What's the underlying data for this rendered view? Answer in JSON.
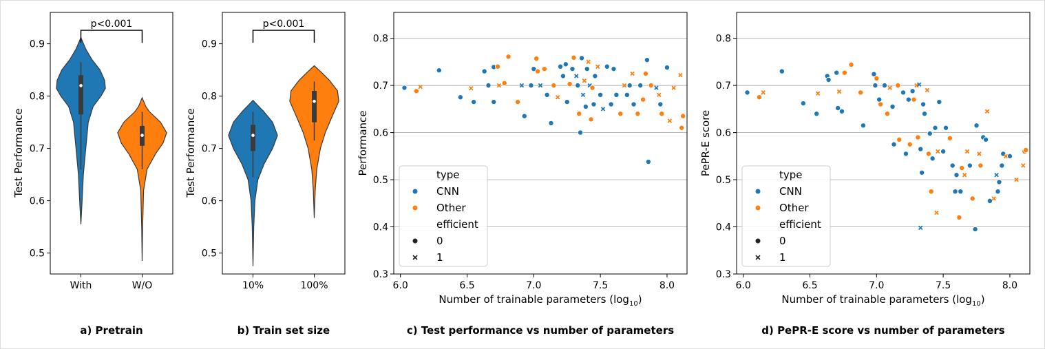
{
  "colors": {
    "cnn": "#1f77b4",
    "other": "#ff7f0e",
    "grid": "#b0b0b0",
    "body": "#3a3a3a"
  },
  "chart_data": [
    {
      "id": "a",
      "type": "violin",
      "caption": "a) Pretrain",
      "ylabel": "Test Performance",
      "ylim": [
        0.46,
        0.96
      ],
      "yticks": [
        "0.5",
        "0.6",
        "0.7",
        "0.8",
        "0.9"
      ],
      "categories": [
        "With",
        "W/O"
      ],
      "annotation": "p<0.001",
      "violins": [
        {
          "name": "With",
          "color": "#1f77b4",
          "min": 0.555,
          "max": 0.912,
          "q1": 0.765,
          "median": 0.82,
          "q3": 0.84,
          "whisker_low": 0.66,
          "whisker_high": 0.865,
          "profile": [
            [
              0.555,
              0.0
            ],
            [
              0.6,
              0.05
            ],
            [
              0.65,
              0.1
            ],
            [
              0.7,
              0.2
            ],
            [
              0.75,
              0.3
            ],
            [
              0.78,
              0.5
            ],
            [
              0.8,
              0.82
            ],
            [
              0.815,
              1.0
            ],
            [
              0.83,
              0.97
            ],
            [
              0.85,
              0.78
            ],
            [
              0.87,
              0.45
            ],
            [
              0.89,
              0.2
            ],
            [
              0.912,
              0.0
            ]
          ]
        },
        {
          "name": "W/O",
          "color": "#ff7f0e",
          "min": 0.485,
          "max": 0.797,
          "q1": 0.705,
          "median": 0.725,
          "q3": 0.743,
          "whisker_low": 0.66,
          "whisker_high": 0.77,
          "profile": [
            [
              0.485,
              0.0
            ],
            [
              0.55,
              0.02
            ],
            [
              0.62,
              0.06
            ],
            [
              0.66,
              0.2
            ],
            [
              0.69,
              0.55
            ],
            [
              0.71,
              0.85
            ],
            [
              0.73,
              1.0
            ],
            [
              0.75,
              0.75
            ],
            [
              0.77,
              0.3
            ],
            [
              0.78,
              0.15
            ],
            [
              0.797,
              0.0
            ]
          ]
        }
      ]
    },
    {
      "id": "b",
      "type": "violin",
      "caption": "b) Train set size",
      "ylabel": "Test Performance",
      "ylim": [
        0.46,
        0.96
      ],
      "yticks": [
        "0.5",
        "0.6",
        "0.7",
        "0.8",
        "0.9"
      ],
      "categories": [
        "10%",
        "100%"
      ],
      "annotation": "p<0.001",
      "violins": [
        {
          "name": "10%",
          "color": "#1f77b4",
          "min": 0.475,
          "max": 0.792,
          "q1": 0.695,
          "median": 0.725,
          "q3": 0.745,
          "whisker_low": 0.645,
          "whisker_high": 0.77,
          "profile": [
            [
              0.475,
              0.0
            ],
            [
              0.55,
              0.03
            ],
            [
              0.6,
              0.08
            ],
            [
              0.64,
              0.2
            ],
            [
              0.67,
              0.45
            ],
            [
              0.7,
              0.8
            ],
            [
              0.725,
              1.0
            ],
            [
              0.75,
              0.8
            ],
            [
              0.77,
              0.45
            ],
            [
              0.792,
              0.0
            ]
          ]
        },
        {
          "name": "100%",
          "color": "#ff7f0e",
          "min": 0.567,
          "max": 0.858,
          "q1": 0.75,
          "median": 0.79,
          "q3": 0.81,
          "whisker_low": 0.715,
          "whisker_high": 0.828,
          "profile": [
            [
              0.567,
              0.0
            ],
            [
              0.62,
              0.04
            ],
            [
              0.66,
              0.1
            ],
            [
              0.7,
              0.25
            ],
            [
              0.73,
              0.45
            ],
            [
              0.76,
              0.72
            ],
            [
              0.79,
              1.0
            ],
            [
              0.81,
              0.95
            ],
            [
              0.83,
              0.62
            ],
            [
              0.845,
              0.3
            ],
            [
              0.858,
              0.0
            ]
          ]
        }
      ]
    },
    {
      "id": "c",
      "type": "scatter",
      "caption": "c) Test performance vs number of parameters",
      "xlabel_main": "Number of trainable parameters (log",
      "xlabel_sub": "10",
      "xlabel_tail": ")",
      "ylabel": "Performance",
      "xlim": [
        5.95,
        8.15
      ],
      "ylim": [
        0.3,
        0.855
      ],
      "xticks": [
        "6.0",
        "6.5",
        "7.0",
        "7.5",
        "8.0"
      ],
      "yticks": [
        "0.3",
        "0.4",
        "0.5",
        "0.6",
        "0.7",
        "0.8"
      ],
      "legend": {
        "title_type": "type",
        "cnn": "CNN",
        "other": "Other",
        "title_eff": "efficient",
        "e0": "0",
        "e1": "1"
      },
      "points": [
        [
          6.03,
          0.695,
          "c",
          0
        ],
        [
          6.12,
          0.688,
          "o",
          0
        ],
        [
          6.15,
          0.697,
          "o",
          1
        ],
        [
          6.29,
          0.732,
          "c",
          0
        ],
        [
          6.45,
          0.675,
          "c",
          0
        ],
        [
          6.53,
          0.694,
          "o",
          1
        ],
        [
          6.55,
          0.665,
          "c",
          0
        ],
        [
          6.63,
          0.73,
          "c",
          0
        ],
        [
          6.66,
          0.7,
          "c",
          0
        ],
        [
          6.7,
          0.739,
          "c",
          0
        ],
        [
          6.7,
          0.665,
          "c",
          0
        ],
        [
          6.73,
          0.74,
          "o",
          0
        ],
        [
          6.74,
          0.7,
          "o",
          1
        ],
        [
          6.78,
          0.705,
          "o",
          0
        ],
        [
          6.81,
          0.761,
          "o",
          0
        ],
        [
          6.88,
          0.665,
          "o",
          0
        ],
        [
          6.91,
          0.7,
          "c",
          1
        ],
        [
          6.93,
          0.635,
          "c",
          0
        ],
        [
          6.98,
          0.7,
          "c",
          0
        ],
        [
          7.0,
          0.735,
          "c",
          0
        ],
        [
          7.02,
          0.757,
          "o",
          0
        ],
        [
          7.03,
          0.73,
          "o",
          0
        ],
        [
          7.05,
          0.7,
          "c",
          1
        ],
        [
          7.08,
          0.735,
          "o",
          0
        ],
        [
          7.1,
          0.68,
          "c",
          0
        ],
        [
          7.13,
          0.62,
          "c",
          0
        ],
        [
          7.15,
          0.7,
          "o",
          0
        ],
        [
          7.18,
          0.675,
          "o",
          1
        ],
        [
          7.2,
          0.74,
          "c",
          0
        ],
        [
          7.22,
          0.72,
          "c",
          0
        ],
        [
          7.24,
          0.745,
          "c",
          0
        ],
        [
          7.25,
          0.665,
          "c",
          0
        ],
        [
          7.27,
          0.703,
          "o",
          0
        ],
        [
          7.29,
          0.735,
          "c",
          0
        ],
        [
          7.3,
          0.759,
          "o",
          0
        ],
        [
          7.32,
          0.72,
          "c",
          1
        ],
        [
          7.33,
          0.7,
          "c",
          0
        ],
        [
          7.34,
          0.64,
          "o",
          0
        ],
        [
          7.35,
          0.6,
          "c",
          0
        ],
        [
          7.36,
          0.758,
          "c",
          0
        ],
        [
          7.37,
          0.68,
          "c",
          1
        ],
        [
          7.38,
          0.71,
          "o",
          1
        ],
        [
          7.39,
          0.655,
          "c",
          0
        ],
        [
          7.4,
          0.735,
          "c",
          0
        ],
        [
          7.41,
          0.75,
          "o",
          1
        ],
        [
          7.42,
          0.7,
          "c",
          1
        ],
        [
          7.43,
          0.628,
          "o",
          0
        ],
        [
          7.44,
          0.695,
          "o",
          0
        ],
        [
          7.45,
          0.66,
          "c",
          0
        ],
        [
          7.46,
          0.72,
          "c",
          0
        ],
        [
          7.48,
          0.74,
          "o",
          1
        ],
        [
          7.5,
          0.68,
          "c",
          0
        ],
        [
          7.52,
          0.65,
          "c",
          1
        ],
        [
          7.55,
          0.74,
          "c",
          0
        ],
        [
          7.58,
          0.66,
          "c",
          0
        ],
        [
          7.6,
          0.735,
          "c",
          0
        ],
        [
          7.62,
          0.68,
          "c",
          0
        ],
        [
          7.65,
          0.64,
          "o",
          0
        ],
        [
          7.68,
          0.7,
          "o",
          1
        ],
        [
          7.7,
          0.68,
          "c",
          0
        ],
        [
          7.72,
          0.7,
          "c",
          0
        ],
        [
          7.74,
          0.725,
          "o",
          1
        ],
        [
          7.75,
          0.66,
          "c",
          0
        ],
        [
          7.78,
          0.64,
          "o",
          0
        ],
        [
          7.8,
          0.7,
          "c",
          0
        ],
        [
          7.82,
          0.67,
          "o",
          0
        ],
        [
          7.84,
          0.725,
          "o",
          0
        ],
        [
          7.85,
          0.754,
          "c",
          0
        ],
        [
          7.86,
          0.538,
          "c",
          0
        ],
        [
          7.88,
          0.7,
          "o",
          0
        ],
        [
          7.92,
          0.695,
          "c",
          1
        ],
        [
          7.94,
          0.68,
          "o",
          1
        ],
        [
          7.95,
          0.66,
          "c",
          0
        ],
        [
          7.96,
          0.64,
          "o",
          0
        ],
        [
          8.0,
          0.738,
          "c",
          0
        ],
        [
          8.02,
          0.625,
          "o",
          1
        ],
        [
          8.05,
          0.695,
          "o",
          1
        ],
        [
          8.1,
          0.722,
          "o",
          1
        ],
        [
          8.11,
          0.61,
          "o",
          0
        ],
        [
          8.12,
          0.635,
          "o",
          0
        ]
      ]
    },
    {
      "id": "d",
      "type": "scatter",
      "caption": "d) PePR-E score vs number of parameters",
      "xlabel_main": "Number of trainable parameters (log",
      "xlabel_sub": "10",
      "xlabel_tail": ")",
      "ylabel": "PePR-E score",
      "xlim": [
        5.95,
        8.15
      ],
      "ylim": [
        0.3,
        0.855
      ],
      "xticks": [
        "6.0",
        "6.5",
        "7.0",
        "7.5",
        "8.0"
      ],
      "yticks": [
        "0.3",
        "0.4",
        "0.5",
        "0.6",
        "0.7",
        "0.8"
      ],
      "legend": {
        "title_type": "type",
        "cnn": "CNN",
        "other": "Other",
        "title_eff": "efficient",
        "e0": "0",
        "e1": "1"
      },
      "points": [
        [
          6.03,
          0.685,
          "c",
          0
        ],
        [
          6.12,
          0.675,
          "o",
          0
        ],
        [
          6.15,
          0.685,
          "o",
          1
        ],
        [
          6.29,
          0.73,
          "c",
          0
        ],
        [
          6.45,
          0.662,
          "c",
          0
        ],
        [
          6.55,
          0.64,
          "c",
          0
        ],
        [
          6.56,
          0.683,
          "o",
          1
        ],
        [
          6.63,
          0.72,
          "c",
          0
        ],
        [
          6.64,
          0.712,
          "c",
          0
        ],
        [
          6.7,
          0.727,
          "c",
          0
        ],
        [
          6.71,
          0.652,
          "c",
          0
        ],
        [
          6.72,
          0.687,
          "o",
          1
        ],
        [
          6.74,
          0.645,
          "c",
          0
        ],
        [
          6.76,
          0.727,
          "o",
          0
        ],
        [
          6.81,
          0.744,
          "o",
          0
        ],
        [
          6.88,
          0.685,
          "o",
          0
        ],
        [
          6.9,
          0.615,
          "c",
          0
        ],
        [
          6.98,
          0.724,
          "c",
          0
        ],
        [
          6.99,
          0.7,
          "c",
          0
        ],
        [
          7.0,
          0.715,
          "o",
          0
        ],
        [
          7.02,
          0.67,
          "c",
          0
        ],
        [
          7.03,
          0.66,
          "o",
          0
        ],
        [
          7.06,
          0.7,
          "c",
          0
        ],
        [
          7.08,
          0.64,
          "o",
          0
        ],
        [
          7.1,
          0.695,
          "o",
          1
        ],
        [
          7.12,
          0.655,
          "c",
          0
        ],
        [
          7.13,
          0.575,
          "c",
          0
        ],
        [
          7.16,
          0.7,
          "o",
          0
        ],
        [
          7.17,
          0.585,
          "o",
          0
        ],
        [
          7.2,
          0.685,
          "c",
          0
        ],
        [
          7.22,
          0.555,
          "c",
          0
        ],
        [
          7.24,
          0.67,
          "c",
          0
        ],
        [
          7.25,
          0.575,
          "o",
          0
        ],
        [
          7.27,
          0.688,
          "c",
          0
        ],
        [
          7.28,
          0.67,
          "o",
          0
        ],
        [
          7.3,
          0.7,
          "o",
          1
        ],
        [
          7.31,
          0.59,
          "o",
          0
        ],
        [
          7.32,
          0.702,
          "c",
          1
        ],
        [
          7.33,
          0.565,
          "c",
          0
        ],
        [
          7.33,
          0.398,
          "c",
          1
        ],
        [
          7.34,
          0.515,
          "c",
          0
        ],
        [
          7.35,
          0.66,
          "c",
          0
        ],
        [
          7.36,
          0.64,
          "c",
          0
        ],
        [
          7.38,
          0.69,
          "o",
          1
        ],
        [
          7.39,
          0.555,
          "o",
          0
        ],
        [
          7.4,
          0.598,
          "c",
          0
        ],
        [
          7.41,
          0.475,
          "o",
          0
        ],
        [
          7.42,
          0.545,
          "c",
          0
        ],
        [
          7.44,
          0.61,
          "c",
          0
        ],
        [
          7.45,
          0.43,
          "o",
          1
        ],
        [
          7.46,
          0.56,
          "o",
          1
        ],
        [
          7.47,
          0.665,
          "c",
          0
        ],
        [
          7.5,
          0.56,
          "c",
          0
        ],
        [
          7.52,
          0.61,
          "c",
          0
        ],
        [
          7.55,
          0.588,
          "o",
          0
        ],
        [
          7.57,
          0.53,
          "c",
          0
        ],
        [
          7.59,
          0.475,
          "c",
          0
        ],
        [
          7.6,
          0.51,
          "c",
          0
        ],
        [
          7.62,
          0.42,
          "o",
          0
        ],
        [
          7.63,
          0.475,
          "c",
          0
        ],
        [
          7.64,
          0.525,
          "o",
          0
        ],
        [
          7.66,
          0.51,
          "o",
          1
        ],
        [
          7.68,
          0.56,
          "o",
          1
        ],
        [
          7.7,
          0.53,
          "c",
          0
        ],
        [
          7.72,
          0.46,
          "o",
          0
        ],
        [
          7.74,
          0.395,
          "c",
          0
        ],
        [
          7.75,
          0.615,
          "c",
          0
        ],
        [
          7.77,
          0.555,
          "o",
          1
        ],
        [
          7.78,
          0.53,
          "o",
          0
        ],
        [
          7.8,
          0.59,
          "c",
          0
        ],
        [
          7.82,
          0.585,
          "c",
          0
        ],
        [
          7.83,
          0.645,
          "o",
          1
        ],
        [
          7.85,
          0.455,
          "c",
          0
        ],
        [
          7.88,
          0.46,
          "o",
          1
        ],
        [
          7.9,
          0.51,
          "c",
          1
        ],
        [
          7.91,
          0.475,
          "c",
          0
        ],
        [
          7.92,
          0.495,
          "c",
          0
        ],
        [
          7.94,
          0.53,
          "c",
          0
        ],
        [
          7.95,
          0.555,
          "c",
          0
        ],
        [
          7.97,
          0.55,
          "o",
          1
        ],
        [
          8.0,
          0.55,
          "c",
          0
        ],
        [
          8.05,
          0.5,
          "o",
          1
        ],
        [
          8.1,
          0.53,
          "o",
          1
        ],
        [
          8.11,
          0.56,
          "o",
          0
        ],
        [
          8.12,
          0.563,
          "o",
          0
        ]
      ]
    }
  ]
}
